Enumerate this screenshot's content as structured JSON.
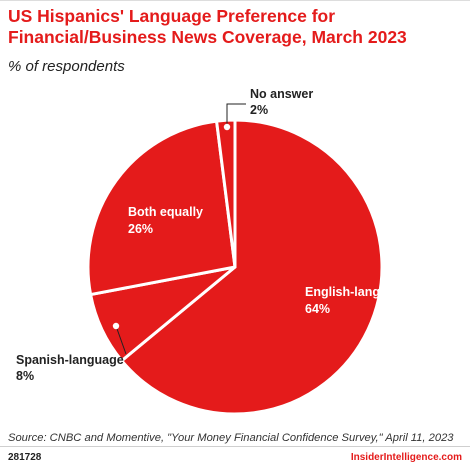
{
  "header": {
    "title": "US Hispanics' Language Preference for Financial/Business News Coverage, March 2023",
    "subtitle": "% of respondents"
  },
  "chart_data": {
    "type": "pie",
    "slices": [
      {
        "label": "English-language",
        "value": 64,
        "value_label": "64%"
      },
      {
        "label": "Spanish-language",
        "value": 8,
        "value_label": "8%"
      },
      {
        "label": "Both equally",
        "value": 26,
        "value_label": "26%"
      },
      {
        "label": "No answer",
        "value": 2,
        "value_label": "2%"
      }
    ],
    "colors": {
      "slice": "#e41b1b",
      "border": "#ffffff",
      "label_inside": "#ffffff",
      "label_outside": "#222222"
    },
    "legend": "none"
  },
  "footer": {
    "source": "Source: CNBC and Momentive, \"Your Money Financial Confidence Survey,\" April 11, 2023",
    "chart_id": "281728",
    "brand": "InsiderIntelligence.com"
  }
}
